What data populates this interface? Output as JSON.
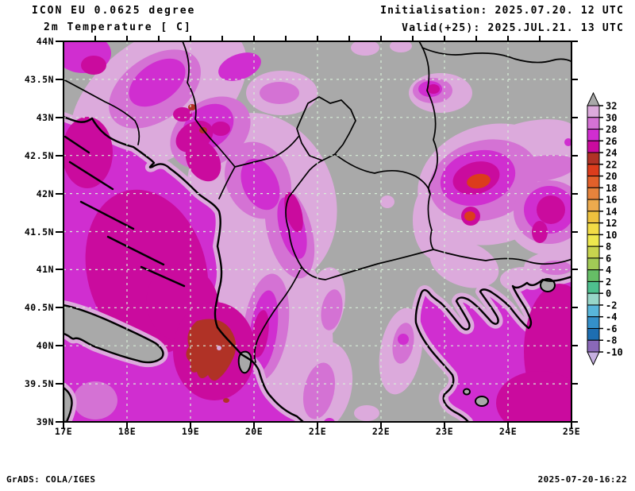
{
  "header": {
    "model": "ICON EU 0.0625 degree",
    "field": "2m Temperature [ C]",
    "init": "Initialisation: 2025.07.20. 12 UTC",
    "valid": "Valid(+25): 2025.JUL.21. 13 UTC"
  },
  "footer": {
    "credit": "GrADS: COLA/IGES",
    "timestamp": "2025-07-20-16:22"
  },
  "map": {
    "lat_labels": [
      "44N",
      "43.5N",
      "43N",
      "42.5N",
      "42N",
      "41.5N",
      "41N",
      "40.5N",
      "40N",
      "39.5N",
      "39N"
    ],
    "lon_labels": [
      "17E",
      "18E",
      "19E",
      "20E",
      "21E",
      "22E",
      "23E",
      "24E",
      "25E"
    ],
    "grid_lat_count": 9,
    "grid_lon_count": 7
  },
  "colorbar": {
    "values": [
      "32",
      "30",
      "28",
      "26",
      "24",
      "22",
      "20",
      "18",
      "16",
      "14",
      "12",
      "10",
      "8",
      "6",
      "4",
      "2",
      "0",
      "-2",
      "-4",
      "-6",
      "-8",
      "-10"
    ],
    "colors": [
      "#dcaadc",
      "#d472d4",
      "#d02ed0",
      "#ca0b9e",
      "#b03226",
      "#dc3c1c",
      "#e2602a",
      "#e6833c",
      "#ecaa4e",
      "#eec23e",
      "#f2dc46",
      "#eee84e",
      "#c8d44e",
      "#a2ca56",
      "#66be66",
      "#4ec08e",
      "#98d6c8",
      "#58b6da",
      "#3490ca",
      "#1e6eb2",
      "#8a68b8"
    ],
    "above_color": "#a9a9a9",
    "below_color": "#c6b0e0"
  },
  "palette": {
    "land_gray": "#a9a9a9",
    "sea_magenta": "#d02ed0",
    "deep_magenta": "#ca0b9e",
    "coast_fringe": "#dcaadc",
    "gridline": "#d7eed7"
  }
}
